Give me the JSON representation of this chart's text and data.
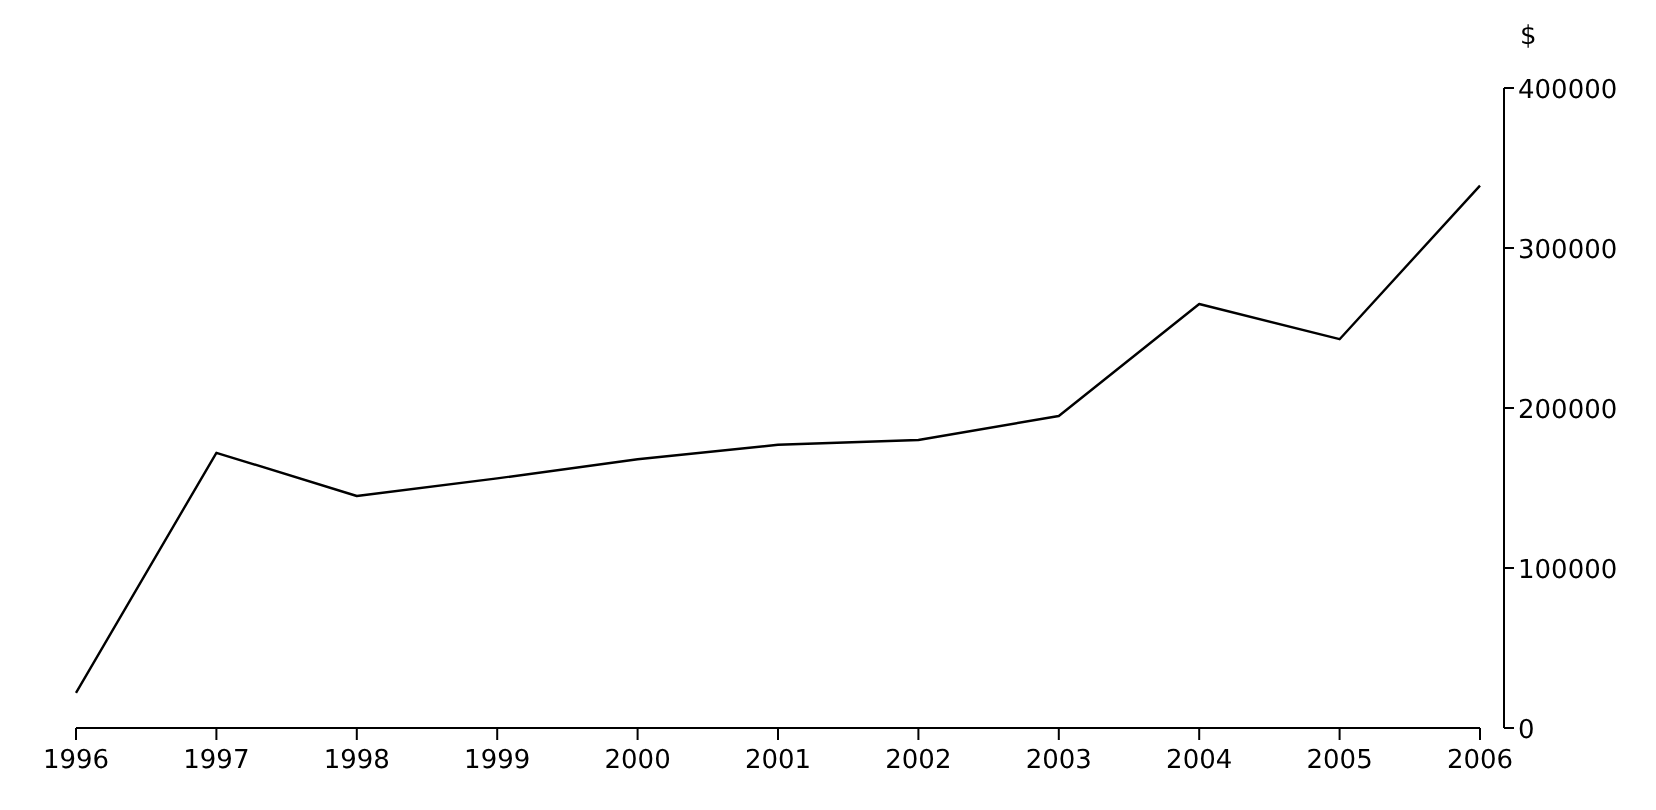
{
  "chart_data": {
    "type": "line",
    "ylabel": "$",
    "x": [
      1996,
      1997,
      1998,
      1999,
      2000,
      2001,
      2002,
      2003,
      2004,
      2005,
      2006
    ],
    "series": [
      {
        "color": "#000000",
        "values": [
          22000,
          172000,
          145000,
          156000,
          168000,
          177000,
          180000,
          195000,
          265000,
          243000,
          339000
        ]
      }
    ],
    "xlim": [
      1996,
      2006
    ],
    "xticks": [
      1996,
      1997,
      1998,
      1999,
      2000,
      2001,
      2002,
      2003,
      2004,
      2005,
      2006
    ],
    "ylim": [
      0,
      400000
    ],
    "yticks": [
      0,
      100000,
      200000,
      300000,
      400000
    ],
    "grid": false
  }
}
